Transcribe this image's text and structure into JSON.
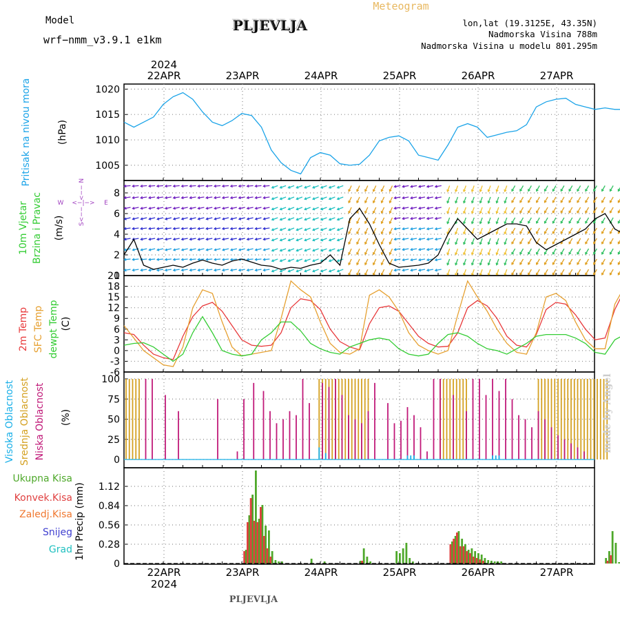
{
  "header": {
    "model_label": "Model",
    "model_name": "wrf−nmm_v3.9.1  e1km",
    "title": "PLJEVLJA",
    "meteogram": "Meteogram",
    "lonlat": "lon,lat (19.3125E, 43.35N)",
    "elevation": "Nadmorska Visina 788m",
    "model_elevation": "Nadmorska Visina u modelu 801.295m",
    "footer": "PLJEVLJA",
    "signature": "made by Angel"
  },
  "colors": {
    "pressure": "#1aa3e8",
    "t2m": "#e8383a",
    "sfc": "#e6a030",
    "dewpt": "#33cc33",
    "high": "#1ab0e8",
    "mid": "#d4a020",
    "low": "#c01878",
    "ukupna": "#4ea82a",
    "konvek": "#e04040",
    "zaledj": "#f07830",
    "snijeg": "#4040d0",
    "grad": "#20c0c0",
    "model": "#a040c0"
  },
  "axis": {
    "year": "2024",
    "days": [
      "22APR",
      "23APR",
      "24APR",
      "25APR",
      "26APR",
      "27APR"
    ]
  },
  "chart_data": [
    {
      "type": "line",
      "title": "",
      "ylabel_1": "Pritisak na nivou mora",
      "ylabel_2": "(hPa)",
      "yticks": [
        1005,
        1010,
        1015,
        1020
      ],
      "ylim": [
        1002,
        1021
      ],
      "x_hours": [
        0,
        3,
        6,
        9,
        12,
        15,
        18,
        21,
        24,
        27,
        30,
        33,
        36,
        39,
        42,
        45,
        48,
        51,
        54,
        57,
        60,
        63,
        66,
        69,
        72,
        75,
        78,
        81,
        84,
        87,
        90,
        93,
        96,
        99,
        102,
        105,
        108,
        111,
        114,
        117,
        120,
        123,
        126,
        129,
        132,
        135,
        138,
        141,
        144,
        147,
        150,
        153
      ],
      "values": [
        1013.5,
        1012.5,
        1013.5,
        1014.5,
        1017.0,
        1018.5,
        1019.3,
        1018.0,
        1015.5,
        1013.5,
        1012.8,
        1013.8,
        1015.2,
        1014.8,
        1012.5,
        1008.0,
        1005.5,
        1004.0,
        1003.3,
        1006.5,
        1007.5,
        1007.0,
        1005.3,
        1005.0,
        1005.2,
        1007.0,
        1009.8,
        1010.5,
        1010.8,
        1009.8,
        1007.0,
        1006.5,
        1006.0,
        1009.0,
        1012.5,
        1013.2,
        1012.5,
        1010.5,
        1011.0,
        1011.5,
        1011.8,
        1013.0,
        1016.5,
        1017.5,
        1018.0,
        1018.2,
        1017.0,
        1016.5,
        1016.0,
        1016.3,
        1016.0,
        1016.0
      ]
    },
    {
      "type": "line",
      "title": "",
      "ylabel_1": "10m Vjetar",
      "ylabel_2": "Brzina i Pravac",
      "ylabel_3": "(m/s)",
      "compass_w": "W",
      "compass_e": "E",
      "compass_up": "<−− N",
      "compass_down": "S<−−",
      "yticks": [
        0,
        2,
        4,
        6,
        8
      ],
      "ylim": [
        0,
        9.2
      ],
      "x_hours": [
        0,
        3,
        6,
        9,
        12,
        15,
        18,
        21,
        24,
        27,
        30,
        33,
        36,
        39,
        42,
        45,
        48,
        51,
        54,
        57,
        60,
        63,
        66,
        69,
        72,
        75,
        78,
        81,
        84,
        87,
        90,
        93,
        96,
        99,
        102,
        105,
        108,
        111,
        114,
        117,
        120,
        123,
        126,
        129,
        132,
        135,
        138,
        141,
        144,
        147,
        150,
        153
      ],
      "values": [
        2.0,
        3.5,
        1.0,
        0.6,
        0.8,
        1.0,
        0.8,
        1.2,
        1.5,
        1.2,
        1.0,
        1.4,
        1.6,
        1.3,
        1.0,
        0.9,
        0.6,
        0.8,
        0.7,
        1.0,
        1.2,
        2.0,
        1.0,
        5.5,
        6.5,
        5.0,
        3.0,
        1.2,
        0.8,
        0.9,
        1.0,
        1.2,
        2.0,
        4.0,
        5.5,
        4.5,
        3.5,
        4.0,
        4.5,
        5.0,
        5.0,
        4.8,
        3.2,
        2.5,
        3.0,
        3.5,
        4.0,
        4.5,
        5.5,
        6.0,
        4.5,
        4.0
      ]
    },
    {
      "type": "line",
      "title": "",
      "ylabel_1": "2m Temp",
      "ylabel_2": "SFC Temp",
      "ylabel_3": "dewpt Temp",
      "ylabel_4": "(C)",
      "yticks": [
        -6,
        -3,
        0,
        3,
        6,
        9,
        12,
        15,
        18,
        21
      ],
      "ylim": [
        -6,
        21
      ],
      "x_hours": [
        0,
        3,
        6,
        9,
        12,
        15,
        18,
        21,
        24,
        27,
        30,
        33,
        36,
        39,
        42,
        45,
        48,
        51,
        54,
        57,
        60,
        63,
        66,
        69,
        72,
        75,
        78,
        81,
        84,
        87,
        90,
        93,
        96,
        99,
        102,
        105,
        108,
        111,
        114,
        117,
        120,
        123,
        126,
        129,
        132,
        135,
        138,
        141,
        144,
        147,
        150,
        153
      ],
      "series": [
        {
          "name": "2m Temp",
          "values": [
            5.0,
            4.5,
            1.5,
            -1.0,
            -2.0,
            -2.5,
            4.0,
            9.5,
            12.5,
            13.5,
            11.0,
            7.0,
            3.0,
            1.5,
            1.2,
            1.5,
            5.0,
            12.0,
            14.5,
            14.0,
            11.5,
            6.0,
            2.5,
            1.0,
            0.2,
            7.5,
            12.0,
            12.5,
            11.0,
            7.5,
            4.0,
            2.0,
            1.0,
            1.2,
            5.0,
            12.0,
            14.0,
            12.5,
            9.0,
            4.0,
            1.5,
            1.0,
            4.5,
            11.5,
            13.5,
            13.0,
            10.0,
            6.0,
            3.0,
            3.5,
            11.5,
            17.0
          ]
        },
        {
          "name": "SFC Temp",
          "values": [
            7.0,
            3.5,
            0.0,
            -2.0,
            -4.0,
            -4.5,
            1.0,
            12.0,
            17.0,
            16.0,
            8.0,
            1.0,
            -1.5,
            -1.0,
            -0.5,
            0.0,
            9.0,
            19.5,
            17.0,
            15.0,
            8.0,
            2.0,
            -0.5,
            -1.0,
            0.5,
            15.5,
            17.0,
            15.0,
            11.0,
            5.0,
            1.5,
            0.0,
            -1.0,
            0.0,
            10.0,
            19.5,
            15.0,
            11.0,
            6.0,
            2.0,
            -0.5,
            -1.0,
            5.0,
            15.0,
            16.0,
            14.0,
            8.0,
            3.0,
            0.5,
            0.5,
            13.0,
            18.0
          ]
        },
        {
          "name": "dewpt Temp",
          "values": [
            1.5,
            2.0,
            2.2,
            1.0,
            -1.0,
            -3.0,
            -1.0,
            5.0,
            9.5,
            5.0,
            0.0,
            -1.0,
            -1.5,
            -1.0,
            3.0,
            5.0,
            8.0,
            8.0,
            5.5,
            2.0,
            0.5,
            -0.5,
            -1.0,
            1.0,
            2.0,
            3.0,
            3.5,
            3.0,
            0.5,
            -1.0,
            -1.5,
            -1.0,
            2.0,
            4.5,
            5.0,
            4.0,
            2.0,
            0.5,
            0.0,
            -1.0,
            0.5,
            2.0,
            4.0,
            4.5,
            4.5,
            4.5,
            3.5,
            2.0,
            -0.5,
            -1.0,
            3.0,
            4.5
          ]
        }
      ]
    },
    {
      "type": "bar",
      "title": "",
      "ylabel_1": "Visoka Oblacnost",
      "ylabel_2": "Srednja Oblacnost",
      "ylabel_3": "Niska Oblacnost",
      "ylabel_4": "(%)",
      "yticks": [
        0,
        25,
        50,
        75,
        100
      ],
      "ylim": [
        0,
        100
      ],
      "series": [
        {
          "name": "Srednja Oblacnost",
          "hours": [
            0,
            1,
            2,
            3,
            4,
            59,
            60,
            61,
            62,
            63,
            64,
            65,
            66,
            67,
            68,
            69,
            70,
            71,
            72,
            73,
            74,
            96,
            97,
            98,
            99,
            100,
            101,
            102,
            103,
            104,
            126,
            127,
            128,
            129,
            130,
            131,
            132,
            133,
            134,
            135,
            136,
            137,
            138,
            139,
            140,
            141,
            142,
            143,
            144,
            145,
            146,
            147
          ],
          "values": [
            100,
            100,
            100,
            100,
            100,
            100,
            100,
            100,
            100,
            100,
            100,
            100,
            100,
            100,
            100,
            100,
            100,
            100,
            100,
            100,
            100,
            100,
            100,
            100,
            100,
            100,
            100,
            100,
            100,
            100,
            100,
            100,
            100,
            100,
            100,
            100,
            100,
            100,
            100,
            100,
            100,
            100,
            100,
            100,
            100,
            100,
            100,
            100,
            100,
            100,
            100,
            100
          ]
        },
        {
          "name": "Niska Oblacnost",
          "hours": [
            6,
            8,
            12,
            16,
            28,
            34,
            36,
            39,
            42,
            44,
            46,
            48,
            50,
            52,
            54,
            56,
            60,
            62,
            64,
            66,
            68,
            70,
            72,
            74,
            76,
            80,
            82,
            84,
            86,
            88,
            90,
            92,
            94,
            96,
            100,
            104,
            106,
            108,
            110,
            112,
            114,
            116,
            118,
            120,
            122,
            124,
            126,
            128,
            130,
            132,
            134,
            136,
            138,
            140
          ],
          "values": [
            100,
            100,
            80,
            60,
            75,
            10,
            75,
            95,
            85,
            60,
            45,
            50,
            60,
            55,
            100,
            70,
            95,
            90,
            100,
            80,
            55,
            50,
            45,
            60,
            95,
            70,
            45,
            48,
            65,
            55,
            40,
            10,
            100,
            100,
            80,
            60,
            100,
            100,
            80,
            100,
            85,
            100,
            75,
            55,
            50,
            40,
            60,
            50,
            40,
            30,
            25,
            20,
            15,
            10
          ]
        },
        {
          "name": "Visoka Oblacnost",
          "hours": [
            59,
            61,
            86,
            87,
            88,
            112,
            113,
            114
          ],
          "values": [
            15,
            8,
            5,
            5,
            5,
            5,
            5,
            5
          ]
        }
      ]
    },
    {
      "type": "bar",
      "title": "",
      "legend_1": "Ukupna Kisa",
      "legend_2": "Konvek.Kisa",
      "legend_3": "Zaledj.Kisa",
      "legend_4": "Snijeg",
      "legend_5": "Grad",
      "ylabel_1": "1hr Precip (mm)",
      "yticks": [
        0,
        0.28,
        0.56,
        0.84,
        1.12
      ],
      "ylim": [
        0,
        1.4
      ],
      "ytick_labels": [
        "0",
        "0.28",
        "0.56",
        "0.84",
        "1.12"
      ],
      "series": [
        {
          "name": "Ukupna Kisa",
          "hours": [
            37,
            38,
            39,
            40,
            41,
            42,
            43,
            44,
            45,
            46,
            47,
            48,
            57,
            61,
            72,
            73,
            74,
            75,
            83,
            84,
            85,
            86,
            87,
            88,
            100,
            101,
            102,
            103,
            104,
            105,
            106,
            107,
            108,
            109,
            110,
            111,
            112,
            113,
            114,
            115,
            147,
            148,
            149,
            150,
            151
          ],
          "values": [
            0.2,
            0.7,
            1.0,
            1.35,
            0.65,
            0.85,
            0.55,
            0.48,
            0.18,
            0.05,
            0.03,
            0.03,
            0.07,
            0.03,
            0.04,
            0.22,
            0.1,
            0.03,
            0.18,
            0.15,
            0.22,
            0.3,
            0.08,
            0.03,
            0.32,
            0.4,
            0.47,
            0.36,
            0.28,
            0.2,
            0.22,
            0.18,
            0.15,
            0.13,
            0.08,
            0.05,
            0.04,
            0.03,
            0.03,
            0.03,
            0.08,
            0.18,
            0.47,
            0.3,
            0.02
          ]
        },
        {
          "name": "Konvek.Kisa",
          "hours": [
            37,
            38,
            39,
            40,
            41,
            42,
            43,
            44,
            45,
            73,
            100,
            101,
            102,
            103,
            104,
            105,
            106,
            107,
            108,
            109,
            110,
            148,
            149
          ],
          "values": [
            0.18,
            0.6,
            0.95,
            0.62,
            0.6,
            0.82,
            0.4,
            0.22,
            0.1,
            0.04,
            0.28,
            0.36,
            0.45,
            0.25,
            0.25,
            0.18,
            0.15,
            0.1,
            0.08,
            0.06,
            0.04,
            0.04,
            0.12
          ]
        }
      ]
    }
  ]
}
